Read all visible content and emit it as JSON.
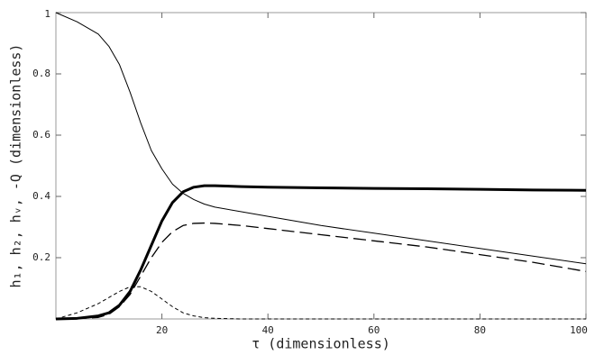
{
  "chart_data": {
    "type": "line",
    "xlabel": "τ (dimensionless)",
    "ylabel": "h₁, h₂, hᵥ, -Q (dimensionless)",
    "x": [
      0,
      4,
      8,
      10,
      12,
      14,
      16,
      18,
      20,
      22,
      24,
      26,
      28,
      30,
      35,
      40,
      50,
      60,
      70,
      80,
      90,
      100
    ],
    "series": [
      {
        "color": "#000000",
        "style": "solid",
        "values": [
          1,
          0.97,
          0.93,
          0.89,
          0.83,
          0.74,
          0.64,
          0.55,
          0.49,
          0.44,
          0.41,
          0.39,
          0.375,
          0.365,
          0.35,
          0.335,
          0.305,
          0.28,
          0.255,
          0.23,
          0.205,
          0.18
        ]
      },
      {
        "color": "#000000",
        "style": "thick",
        "values": [
          0,
          0.002,
          0.01,
          0.02,
          0.045,
          0.09,
          0.16,
          0.24,
          0.32,
          0.38,
          0.415,
          0.43,
          0.435,
          0.435,
          0.432,
          0.43,
          0.428,
          0.426,
          0.425,
          0.423,
          0.421,
          0.42
        ]
      },
      {
        "color": "#000000",
        "style": "dashed",
        "values": [
          0,
          0.001,
          0.005,
          0.015,
          0.04,
          0.08,
          0.14,
          0.2,
          0.25,
          0.285,
          0.305,
          0.312,
          0.313,
          0.312,
          0.305,
          0.295,
          0.275,
          0.255,
          0.235,
          0.21,
          0.185,
          0.155
        ]
      },
      {
        "color": "#000000",
        "style": "dotted",
        "values": [
          0,
          0.02,
          0.05,
          0.07,
          0.09,
          0.105,
          0.105,
          0.09,
          0.065,
          0.04,
          0.02,
          0.01,
          0.004,
          0.002,
          0,
          0,
          0,
          0,
          0,
          0,
          0,
          0
        ]
      }
    ],
    "xlim": [
      0,
      100
    ],
    "xticks": [
      20,
      40,
      60,
      80,
      100
    ],
    "ylim": [
      0,
      1
    ],
    "yticks": [
      0.2,
      0.4,
      0.6,
      0.8,
      1
    ]
  }
}
